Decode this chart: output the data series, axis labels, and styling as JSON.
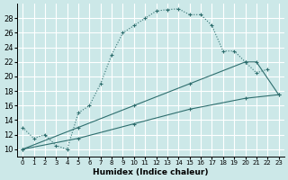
{
  "bg_color": "#cce8e8",
  "grid_color": "#ffffff",
  "line_color": "#2e6e6e",
  "xlabel": "Humidex (Indice chaleur)",
  "xlim": [
    -0.5,
    23.5
  ],
  "ylim": [
    9,
    30
  ],
  "xticks": [
    0,
    1,
    2,
    3,
    4,
    5,
    6,
    7,
    8,
    9,
    10,
    11,
    12,
    13,
    14,
    15,
    16,
    17,
    18,
    19,
    20,
    21,
    22,
    23
  ],
  "yticks": [
    10,
    12,
    14,
    16,
    18,
    20,
    22,
    24,
    26,
    28
  ],
  "curve1_x": [
    0,
    1,
    2,
    3,
    4,
    5,
    6,
    7,
    8,
    9,
    10,
    11,
    12,
    13,
    14,
    15,
    16,
    17,
    18,
    19,
    20,
    21,
    22
  ],
  "curve1_y": [
    13,
    11.5,
    12,
    10.5,
    10,
    15,
    16,
    19,
    23,
    26,
    27,
    28,
    29,
    29.2,
    29.3,
    28.5,
    28.5,
    27,
    23.5,
    23.5,
    22,
    20.5,
    21
  ],
  "curve2_x": [
    0,
    5,
    10,
    15,
    20,
    23
  ],
  "curve2_y": [
    10,
    11.5,
    13.5,
    15.5,
    17,
    17.5
  ],
  "curve3_x": [
    0,
    5,
    10,
    15,
    20,
    21,
    23
  ],
  "curve3_y": [
    10,
    13,
    16,
    19,
    22,
    22,
    17.5
  ]
}
